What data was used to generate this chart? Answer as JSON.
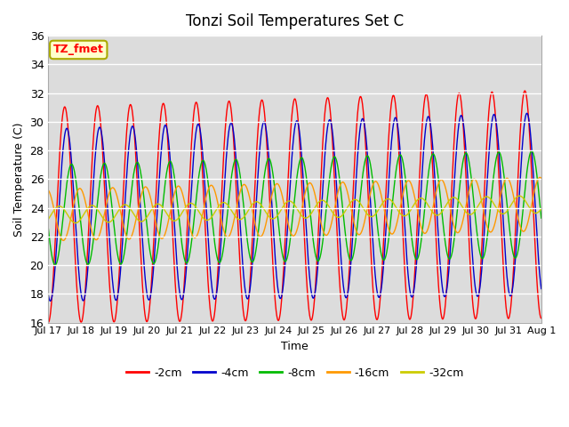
{
  "title": "Tonzi Soil Temperatures Set C",
  "xlabel": "Time",
  "ylabel": "Soil Temperature (C)",
  "annotation": "TZ_fmet",
  "ylim": [
    16,
    36
  ],
  "yticks": [
    16,
    18,
    20,
    22,
    24,
    26,
    28,
    30,
    32,
    34,
    36
  ],
  "bg_color": "#dcdcdc",
  "fig_color": "#ffffff",
  "line_colors": [
    "#ff0000",
    "#0000cc",
    "#00bb00",
    "#ff9900",
    "#cccc00"
  ],
  "line_labels": [
    "-2cm",
    "-4cm",
    "-8cm",
    "-16cm",
    "-32cm"
  ],
  "start_day": 17,
  "end_day": 32,
  "samples_per_day": 96,
  "mean_base": 23.5,
  "mean_trend": 0.05,
  "amplitudes": [
    7.5,
    6.0,
    3.5,
    1.8,
    0.6
  ],
  "amp_trend": [
    0.03,
    0.025,
    0.015,
    0.005,
    0.001
  ],
  "phase_hours": [
    0,
    1.5,
    5.0,
    11.0,
    20.0
  ],
  "grid_color": "#ffffff",
  "tick_fontsize": 8,
  "annotation_fontsize": 9,
  "line_width": 1.0
}
